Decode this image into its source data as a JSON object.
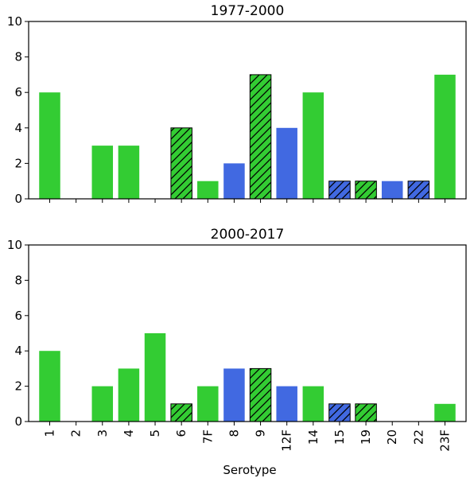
{
  "colors": {
    "green": "#33cc33",
    "blue": "#4169e1",
    "edge": "#000000"
  },
  "chart_data": {
    "type": "bar",
    "categories": [
      "1",
      "2",
      "3",
      "4",
      "5",
      "6",
      "7F",
      "8",
      "9",
      "12F",
      "14",
      "15",
      "19",
      "20",
      "22",
      "23F"
    ],
    "xlabel": "Serotype",
    "panels": [
      {
        "title": "1977-2000",
        "ylim": [
          0,
          10
        ],
        "yticks": [
          "0",
          "2",
          "4",
          "6",
          "8",
          "10"
        ],
        "values": [
          6,
          0,
          3,
          3,
          0,
          4,
          1,
          2,
          7,
          4,
          6,
          1,
          1,
          1,
          1,
          7
        ],
        "colors": [
          "green",
          "green",
          "green",
          "green",
          "green",
          "green",
          "green",
          "blue",
          "green",
          "blue",
          "green",
          "blue",
          "green",
          "blue",
          "blue",
          "green"
        ],
        "hatched": [
          false,
          false,
          false,
          false,
          false,
          true,
          false,
          false,
          true,
          false,
          false,
          true,
          true,
          false,
          true,
          false
        ]
      },
      {
        "title": "2000-2017",
        "ylim": [
          0,
          10
        ],
        "yticks": [
          "0",
          "2",
          "4",
          "6",
          "8",
          "10"
        ],
        "values": [
          4,
          0,
          2,
          3,
          5,
          1,
          2,
          3,
          3,
          2,
          2,
          1,
          1,
          0,
          0,
          1
        ],
        "colors": [
          "green",
          "green",
          "green",
          "green",
          "green",
          "green",
          "green",
          "blue",
          "green",
          "blue",
          "green",
          "blue",
          "green",
          "green",
          "green",
          "green"
        ],
        "hatched": [
          false,
          false,
          false,
          false,
          false,
          true,
          false,
          false,
          true,
          false,
          false,
          true,
          true,
          false,
          false,
          false
        ]
      }
    ]
  }
}
